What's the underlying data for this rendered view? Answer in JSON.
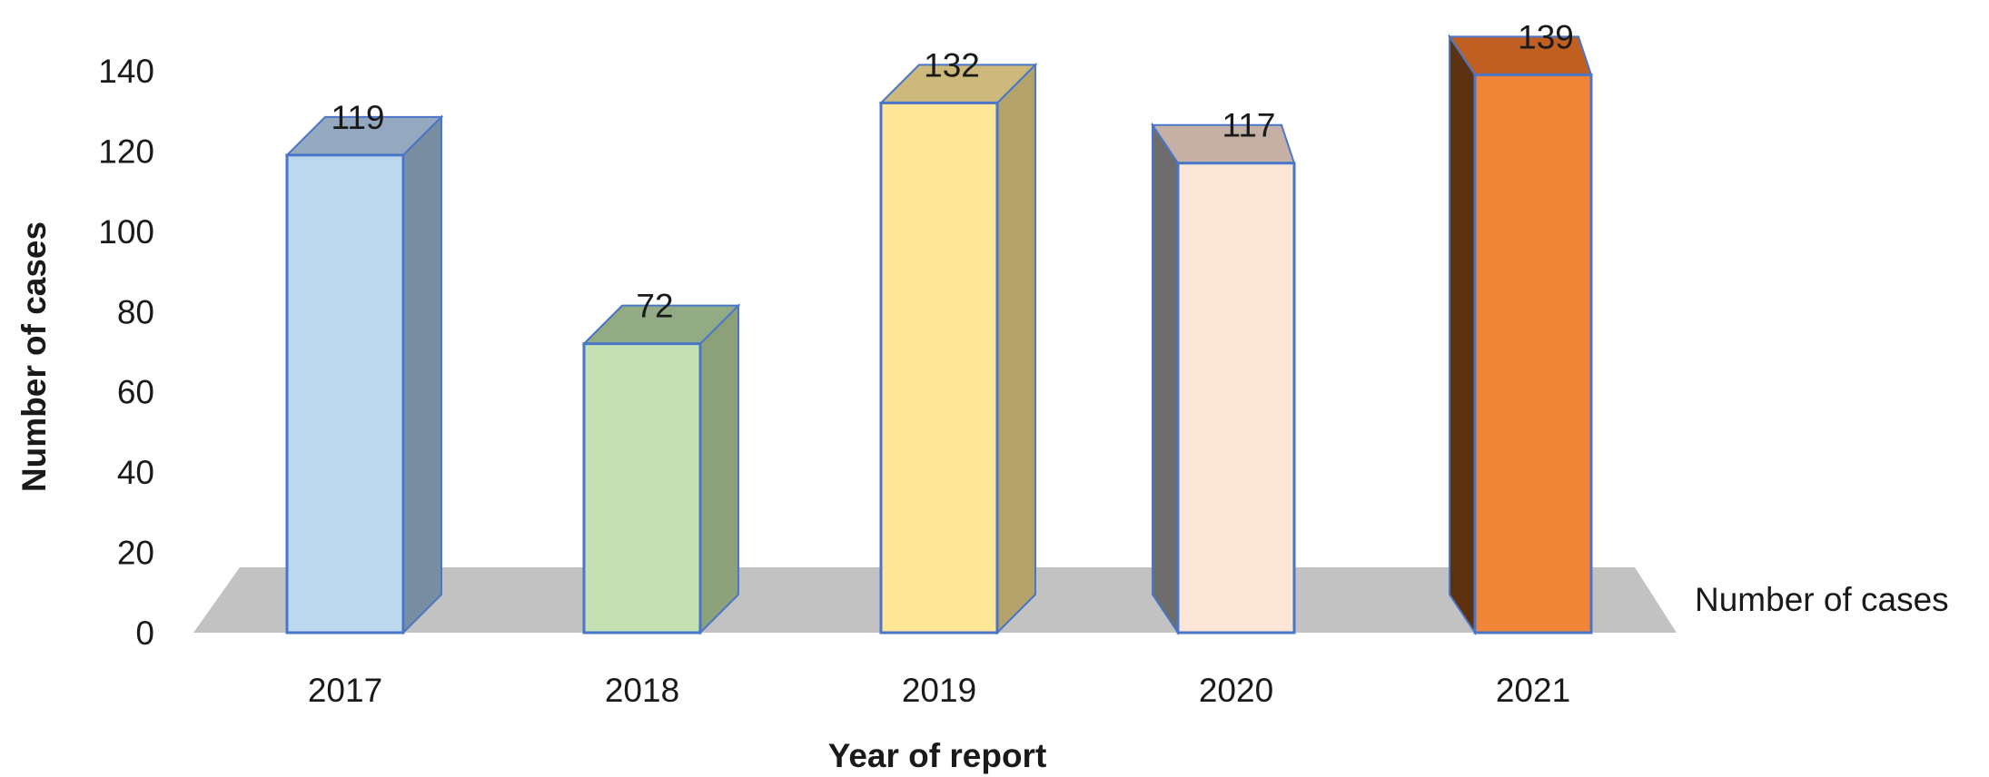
{
  "chart_data": {
    "type": "bar",
    "style": "3d-column",
    "categories": [
      "2017",
      "2018",
      "2019",
      "2020",
      "2021"
    ],
    "series": [
      {
        "name": "Number of cases",
        "values": [
          119,
          72,
          132,
          117,
          139
        ]
      }
    ],
    "data_labels": [
      "119",
      "72",
      "132",
      "117",
      "139"
    ],
    "xlabel": "Year of report",
    "ylabel": "Number of cases",
    "series_axis_label": "Number of cases",
    "ylim": [
      0,
      140
    ],
    "yticks": [
      "0",
      "20",
      "40",
      "60",
      "80",
      "100",
      "120",
      "140"
    ],
    "grid": false,
    "legend": "none",
    "colors": {
      "floor": "#c2c2c2",
      "bar_outline": "#4a76c9",
      "bars": [
        {
          "front": "#bdd7ee",
          "side": "#7a8ea1",
          "top": "#94a8c0"
        },
        {
          "front": "#c5e0b4",
          "side": "#8ca07a",
          "top": "#93ab85"
        },
        {
          "front": "#ffe699",
          "side": "#b3a36a",
          "top": "#cdb97b"
        },
        {
          "front": "#fbe5d6",
          "side": "#6d6d6d",
          "top": "#c4b0a4"
        },
        {
          "front": "#f08437",
          "side": "#5c3112",
          "top": "#c05f22"
        }
      ]
    }
  }
}
